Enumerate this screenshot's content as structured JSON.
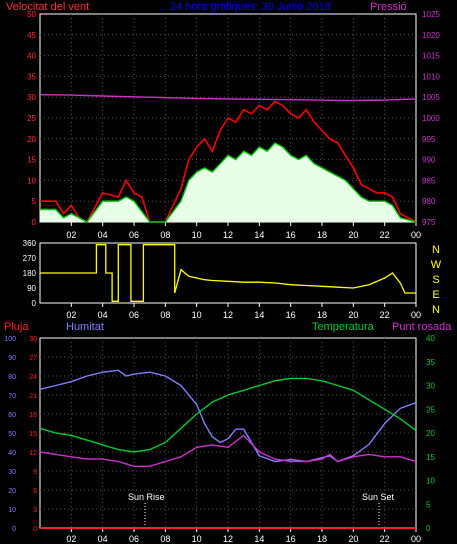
{
  "colors": {
    "background": "#000000",
    "axis": "#ffffff",
    "wind_gust": "#ff0000",
    "wind_avg": "#00cc00",
    "wind_fill": "#e6ffe6",
    "pressure": "#cc33cc",
    "direction": "#ffff00",
    "direction_ref": "#ffffff",
    "rain": "#ff2020",
    "humidity": "#8080ff",
    "temperature": "#00cc33",
    "dewpoint": "#cc33cc",
    "wind_axis_label": "#ff3030",
    "title_text": "#0000ff",
    "pressure_axis": "#cc33cc"
  },
  "chart_data": [
    {
      "type": "line",
      "panel": "wind-pressure",
      "title": "24 hora gràfiques: 30 Junio 2018",
      "left_label": "Velocitat del vent",
      "right_label": "Pressió",
      "x_ticks": [
        "02",
        "04",
        "06",
        "08",
        "10",
        "12",
        "14",
        "16",
        "18",
        "20",
        "22",
        "00"
      ],
      "left_axis": {
        "ticks": [
          0,
          5,
          10,
          15,
          20,
          25,
          30,
          35,
          40,
          45,
          50
        ],
        "ylim": [
          0,
          50
        ]
      },
      "right_axis": {
        "ticks": [
          975,
          980,
          985,
          990,
          995,
          1000,
          1005,
          1010,
          1015,
          1020,
          1025
        ],
        "ylim": [
          975,
          1025
        ]
      },
      "series": [
        {
          "role": "gust",
          "axis": "left",
          "values": [
            [
              0,
              5
            ],
            [
              1,
              5
            ],
            [
              1.5,
              2
            ],
            [
              2,
              4
            ],
            [
              2.5,
              1
            ],
            [
              3,
              0
            ],
            [
              4,
              7
            ],
            [
              5,
              6
            ],
            [
              5.5,
              10
            ],
            [
              6,
              7
            ],
            [
              6.5,
              6
            ],
            [
              7,
              0
            ],
            [
              8,
              0
            ],
            [
              9,
              8
            ],
            [
              9.5,
              15
            ],
            [
              10,
              18
            ],
            [
              10.5,
              20
            ],
            [
              11,
              17
            ],
            [
              11.5,
              22
            ],
            [
              12,
              25
            ],
            [
              12.5,
              24
            ],
            [
              13,
              27
            ],
            [
              13.5,
              26
            ],
            [
              14,
              28
            ],
            [
              14.5,
              27
            ],
            [
              15,
              29
            ],
            [
              15.5,
              28
            ],
            [
              16,
              26
            ],
            [
              16.5,
              25
            ],
            [
              17,
              27
            ],
            [
              17.5,
              24
            ],
            [
              18,
              22
            ],
            [
              18.5,
              20
            ],
            [
              19,
              19
            ],
            [
              19.5,
              16
            ],
            [
              20,
              13
            ],
            [
              20.5,
              9
            ],
            [
              21,
              8
            ],
            [
              21.5,
              7
            ],
            [
              22,
              7
            ],
            [
              22.5,
              6
            ],
            [
              23,
              2
            ],
            [
              23.5,
              1
            ],
            [
              24,
              0
            ]
          ]
        },
        {
          "role": "average",
          "axis": "left",
          "values": [
            [
              0,
              3
            ],
            [
              1,
              3
            ],
            [
              1.5,
              1
            ],
            [
              2,
              2
            ],
            [
              3,
              0
            ],
            [
              4,
              5
            ],
            [
              5,
              5
            ],
            [
              5.5,
              6
            ],
            [
              6,
              5
            ],
            [
              7,
              0
            ],
            [
              8,
              0
            ],
            [
              9,
              5
            ],
            [
              9.5,
              10
            ],
            [
              10,
              12
            ],
            [
              10.5,
              13
            ],
            [
              11,
              12
            ],
            [
              11.5,
              14
            ],
            [
              12,
              16
            ],
            [
              12.5,
              15
            ],
            [
              13,
              17
            ],
            [
              13.5,
              16
            ],
            [
              14,
              18
            ],
            [
              14.5,
              17
            ],
            [
              15,
              19
            ],
            [
              15.5,
              18
            ],
            [
              16,
              16
            ],
            [
              16.5,
              15
            ],
            [
              17,
              16
            ],
            [
              17.5,
              14
            ],
            [
              18,
              13
            ],
            [
              18.5,
              12
            ],
            [
              19,
              11
            ],
            [
              19.5,
              10
            ],
            [
              20,
              8
            ],
            [
              20.5,
              6
            ],
            [
              21,
              5
            ],
            [
              21.5,
              5
            ],
            [
              22,
              5
            ],
            [
              22.5,
              4
            ],
            [
              23,
              1
            ],
            [
              24,
              0
            ]
          ]
        },
        {
          "role": "pressure",
          "axis": "right",
          "values": [
            [
              0,
              1005.6
            ],
            [
              2,
              1005.5
            ],
            [
              4,
              1005.3
            ],
            [
              6,
              1005.1
            ],
            [
              8,
              1004.9
            ],
            [
              10,
              1004.7
            ],
            [
              12,
              1004.6
            ],
            [
              14,
              1004.5
            ],
            [
              16,
              1004.4
            ],
            [
              18,
              1004.3
            ],
            [
              19,
              1004.2
            ],
            [
              20,
              1004.2
            ],
            [
              22,
              1004.3
            ],
            [
              24,
              1004.6
            ]
          ]
        }
      ]
    },
    {
      "type": "scatter",
      "panel": "wind-direction",
      "left_axis": {
        "ticks": [
          0,
          90,
          180,
          270,
          360
        ],
        "ylim": [
          0,
          360
        ]
      },
      "right_labels": [
        "N",
        "W",
        "S",
        "E",
        "N"
      ],
      "x_ticks": [
        "02",
        "04",
        "06",
        "08",
        "10",
        "12",
        "14",
        "16",
        "18",
        "20",
        "22",
        "00"
      ],
      "series": [
        {
          "role": "direction",
          "values": [
            [
              0,
              180
            ],
            [
              3.6,
              180
            ],
            [
              3.6,
              350
            ],
            [
              4.2,
              350
            ],
            [
              4.2,
              180
            ],
            [
              4.6,
              180
            ],
            [
              4.6,
              10
            ],
            [
              5.0,
              10
            ],
            [
              5.0,
              350
            ],
            [
              5.8,
              350
            ],
            [
              5.8,
              10
            ],
            [
              6.6,
              10
            ],
            [
              6.6,
              350
            ],
            [
              8.6,
              350
            ],
            [
              8.6,
              60
            ],
            [
              9,
              200
            ],
            [
              9.5,
              160
            ],
            [
              10,
              150
            ],
            [
              10.5,
              140
            ],
            [
              11,
              135
            ],
            [
              12,
              130
            ],
            [
              13,
              125
            ],
            [
              14,
              125
            ],
            [
              15,
              120
            ],
            [
              16,
              110
            ],
            [
              17,
              105
            ],
            [
              18,
              100
            ],
            [
              19,
              95
            ],
            [
              20,
              90
            ],
            [
              21,
              110
            ],
            [
              22,
              150
            ],
            [
              22.5,
              180
            ],
            [
              23,
              120
            ],
            [
              23.3,
              60
            ],
            [
              24,
              60
            ]
          ]
        }
      ]
    },
    {
      "type": "line",
      "panel": "temp-humidity",
      "labels": {
        "rain": "Pluja",
        "humidity": "Humitat",
        "temperature": "Temperatura",
        "dewpoint": "Punt rosada"
      },
      "annotations": [
        "Sun Rise",
        "Sun Set"
      ],
      "x_ticks": [
        "02",
        "04",
        "06",
        "08",
        "10",
        "12",
        "14",
        "16",
        "18",
        "20",
        "22",
        "00"
      ],
      "humidity_axis": {
        "ticks": [
          0,
          10,
          20,
          30,
          40,
          50,
          60,
          70,
          80,
          90,
          100
        ],
        "ylim": [
          0,
          100
        ]
      },
      "rain_axis": {
        "ticks": [
          0,
          3,
          6,
          9,
          12,
          15,
          18,
          21,
          24,
          27,
          30
        ],
        "ylim": [
          0,
          30
        ]
      },
      "temperature_axis": {
        "ticks": [
          0,
          5,
          10,
          15,
          20,
          25,
          30,
          35,
          40
        ],
        "ylim": [
          0,
          40
        ]
      },
      "series": [
        {
          "role": "humidity",
          "axis": "humidity",
          "values": [
            [
              0,
              73
            ],
            [
              1,
              75
            ],
            [
              2,
              77
            ],
            [
              3,
              80
            ],
            [
              4,
              82
            ],
            [
              5,
              83
            ],
            [
              5.5,
              80
            ],
            [
              6,
              81
            ],
            [
              7,
              82
            ],
            [
              8,
              80
            ],
            [
              9,
              75
            ],
            [
              10,
              65
            ],
            [
              10.5,
              55
            ],
            [
              11,
              48
            ],
            [
              11.5,
              45
            ],
            [
              12,
              47
            ],
            [
              12.5,
              52
            ],
            [
              13,
              52
            ],
            [
              13.5,
              45
            ],
            [
              14,
              38
            ],
            [
              15,
              35
            ],
            [
              16,
              36
            ],
            [
              17,
              35
            ],
            [
              18,
              37
            ],
            [
              18.5,
              38
            ],
            [
              19,
              35
            ],
            [
              20,
              38
            ],
            [
              21,
              44
            ],
            [
              22,
              55
            ],
            [
              23,
              63
            ],
            [
              24,
              66
            ]
          ]
        },
        {
          "role": "temperature",
          "axis": "temperature",
          "values": [
            [
              0,
              21
            ],
            [
              1,
              20
            ],
            [
              2,
              19.5
            ],
            [
              3,
              18.5
            ],
            [
              4,
              17.5
            ],
            [
              5,
              16.5
            ],
            [
              6,
              16
            ],
            [
              7,
              16.5
            ],
            [
              8,
              18
            ],
            [
              9,
              21
            ],
            [
              10,
              24
            ],
            [
              11,
              26.5
            ],
            [
              12,
              28
            ],
            [
              13,
              29
            ],
            [
              14,
              30
            ],
            [
              15,
              31
            ],
            [
              16,
              31.5
            ],
            [
              17,
              31.5
            ],
            [
              18,
              31
            ],
            [
              19,
              30
            ],
            [
              20,
              29
            ],
            [
              21,
              27
            ],
            [
              22,
              25
            ],
            [
              23,
              23
            ],
            [
              24,
              20.5
            ]
          ]
        },
        {
          "role": "dewpoint",
          "axis": "temperature",
          "values": [
            [
              0,
              16
            ],
            [
              1,
              15.5
            ],
            [
              2,
              15
            ],
            [
              3,
              14.5
            ],
            [
              4,
              14.5
            ],
            [
              5,
              14
            ],
            [
              6,
              13
            ],
            [
              7,
              13
            ],
            [
              8,
              14
            ],
            [
              9,
              15
            ],
            [
              10,
              17
            ],
            [
              11,
              17.5
            ],
            [
              12,
              17
            ],
            [
              13,
              19.5
            ],
            [
              14,
              16
            ],
            [
              15,
              14.5
            ],
            [
              16,
              14
            ],
            [
              17,
              14
            ],
            [
              18,
              14.5
            ],
            [
              18.5,
              15.5
            ],
            [
              19,
              14
            ],
            [
              20,
              15
            ],
            [
              21,
              15.5
            ],
            [
              22,
              15
            ],
            [
              23,
              15
            ],
            [
              24,
              14
            ]
          ]
        },
        {
          "role": "rain",
          "axis": "rain",
          "values": [
            [
              0,
              0
            ],
            [
              24,
              0
            ]
          ]
        }
      ]
    }
  ]
}
